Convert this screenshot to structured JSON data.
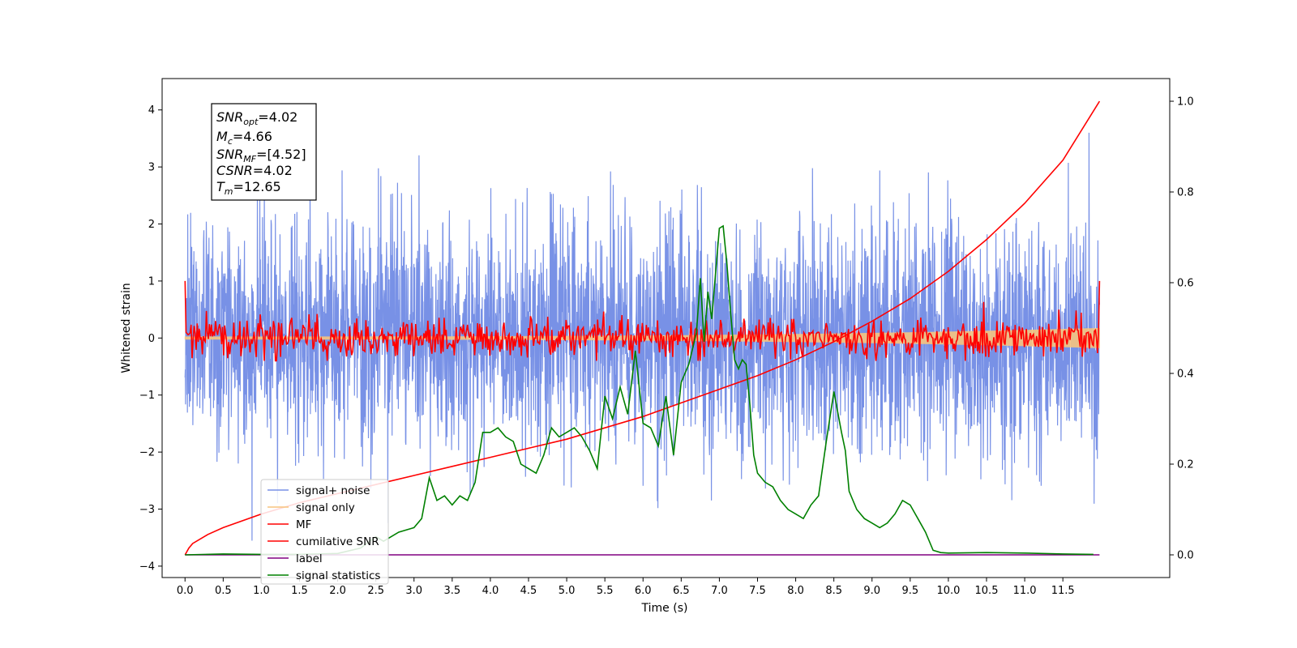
{
  "chart_data": {
    "type": "line",
    "xlabel": "Time (s)",
    "ylabel": "Whitened strain",
    "x_tick_labels": [
      "0.0",
      "0.5",
      "1.0",
      "1.5",
      "2.0",
      "2.5",
      "3.0",
      "3.5",
      "4.0",
      "4.5",
      "5.0",
      "5.5",
      "6.0",
      "6.5",
      "7.0",
      "7.5",
      "8.0",
      "8.5",
      "9.0",
      "9.5",
      "10.0",
      "10.5",
      "11.0",
      "11.5"
    ],
    "y_left_tick_labels": [
      "−4",
      "−3",
      "−2",
      "−1",
      "0",
      "1",
      "2",
      "3",
      "4"
    ],
    "y_right_tick_labels": [
      "0.0",
      "0.2",
      "0.4",
      "0.6",
      "0.8",
      "1.0"
    ],
    "xlim": [
      -0.3,
      12.9
    ],
    "ylim_left": [
      -4.2,
      4.55
    ],
    "ylim_right": [
      -0.05,
      1.05
    ],
    "grid": false,
    "legend_position": "lower-left",
    "info_box": {
      "snr_opt": {
        "name": "SNR",
        "sub": "opt",
        "value": "=4.02"
      },
      "mc": {
        "name": "M",
        "sub": "c",
        "value": "=4.66"
      },
      "snr_mf": {
        "name": "SNR",
        "sub": "MF",
        "value": "=[4.52]"
      },
      "csnr": {
        "name": "CSNR",
        "value": "=4.02"
      },
      "tm": {
        "name": "T",
        "sub": "m",
        "value": "=12.65"
      }
    },
    "series": [
      {
        "name": "signal+ noise",
        "axis": "left",
        "color": "#7891e6",
        "stats": {
          "x_start": 0.0,
          "x_end": 11.98,
          "mean": 0.0,
          "std": 1.0,
          "min": -3.8,
          "max": 4.18
        }
      },
      {
        "name": "signal only",
        "axis": "left",
        "color": "#f7c47f",
        "stats": {
          "x_start": 0.0,
          "x_end": 11.98,
          "amplitude_start": 0.02,
          "amplitude_end": 0.17
        }
      },
      {
        "name": "MF",
        "axis": "left",
        "color": "#ff0000",
        "stats": {
          "x_start": 0.0,
          "x_end": 11.98,
          "mean": 0.0,
          "std": 0.17,
          "min": -0.4,
          "max": 1.0
        }
      },
      {
        "name": "cumilative SNR",
        "axis": "right",
        "color": "#ff0000",
        "x": [
          0.0,
          0.05,
          0.1,
          0.3,
          0.5,
          1.0,
          1.5,
          2.0,
          2.5,
          3.0,
          3.5,
          4.0,
          4.5,
          5.0,
          5.5,
          6.0,
          6.5,
          7.0,
          7.5,
          8.0,
          8.5,
          9.0,
          9.5,
          10.0,
          10.5,
          11.0,
          11.5,
          11.98
        ],
        "y": [
          0.0,
          0.015,
          0.025,
          0.045,
          0.06,
          0.09,
          0.115,
          0.135,
          0.155,
          0.175,
          0.195,
          0.215,
          0.235,
          0.255,
          0.28,
          0.305,
          0.335,
          0.365,
          0.395,
          0.43,
          0.47,
          0.515,
          0.565,
          0.625,
          0.695,
          0.775,
          0.87,
          1.0
        ]
      },
      {
        "name": "label",
        "axis": "right",
        "color": "#800080",
        "x": [
          0.0,
          11.98
        ],
        "y": [
          0.0,
          0.0
        ]
      },
      {
        "name": "signal statistics",
        "axis": "right",
        "color": "#008000",
        "x": [
          0.0,
          0.5,
          1.0,
          1.5,
          2.0,
          2.3,
          2.5,
          2.6,
          2.8,
          3.0,
          3.1,
          3.2,
          3.3,
          3.4,
          3.5,
          3.6,
          3.7,
          3.8,
          3.9,
          4.0,
          4.1,
          4.2,
          4.3,
          4.4,
          4.5,
          4.6,
          4.7,
          4.8,
          4.9,
          5.0,
          5.1,
          5.2,
          5.3,
          5.4,
          5.5,
          5.6,
          5.7,
          5.8,
          5.9,
          6.0,
          6.1,
          6.2,
          6.3,
          6.4,
          6.5,
          6.6,
          6.7,
          6.75,
          6.8,
          6.85,
          6.9,
          6.95,
          7.0,
          7.05,
          7.1,
          7.15,
          7.2,
          7.25,
          7.3,
          7.35,
          7.4,
          7.45,
          7.5,
          7.6,
          7.7,
          7.8,
          7.9,
          8.0,
          8.1,
          8.2,
          8.3,
          8.4,
          8.5,
          8.6,
          8.65,
          8.7,
          8.8,
          8.9,
          9.0,
          9.1,
          9.2,
          9.3,
          9.4,
          9.5,
          9.6,
          9.7,
          9.8,
          9.9,
          10.0,
          10.5,
          11.0,
          11.5,
          11.9
        ],
        "y": [
          0.0,
          0.002,
          0.001,
          0.001,
          0.003,
          0.015,
          0.04,
          0.03,
          0.05,
          0.06,
          0.08,
          0.17,
          0.12,
          0.13,
          0.11,
          0.13,
          0.12,
          0.16,
          0.27,
          0.27,
          0.28,
          0.26,
          0.25,
          0.2,
          0.19,
          0.18,
          0.22,
          0.28,
          0.26,
          0.27,
          0.28,
          0.26,
          0.23,
          0.19,
          0.35,
          0.3,
          0.37,
          0.31,
          0.45,
          0.29,
          0.28,
          0.24,
          0.35,
          0.22,
          0.38,
          0.42,
          0.49,
          0.61,
          0.47,
          0.58,
          0.52,
          0.62,
          0.72,
          0.725,
          0.64,
          0.53,
          0.43,
          0.41,
          0.43,
          0.42,
          0.33,
          0.22,
          0.18,
          0.16,
          0.15,
          0.12,
          0.1,
          0.09,
          0.08,
          0.11,
          0.13,
          0.25,
          0.36,
          0.27,
          0.23,
          0.14,
          0.1,
          0.08,
          0.07,
          0.06,
          0.07,
          0.09,
          0.12,
          0.11,
          0.08,
          0.05,
          0.01,
          0.005,
          0.004,
          0.005,
          0.004,
          0.002,
          0.001
        ]
      }
    ]
  }
}
